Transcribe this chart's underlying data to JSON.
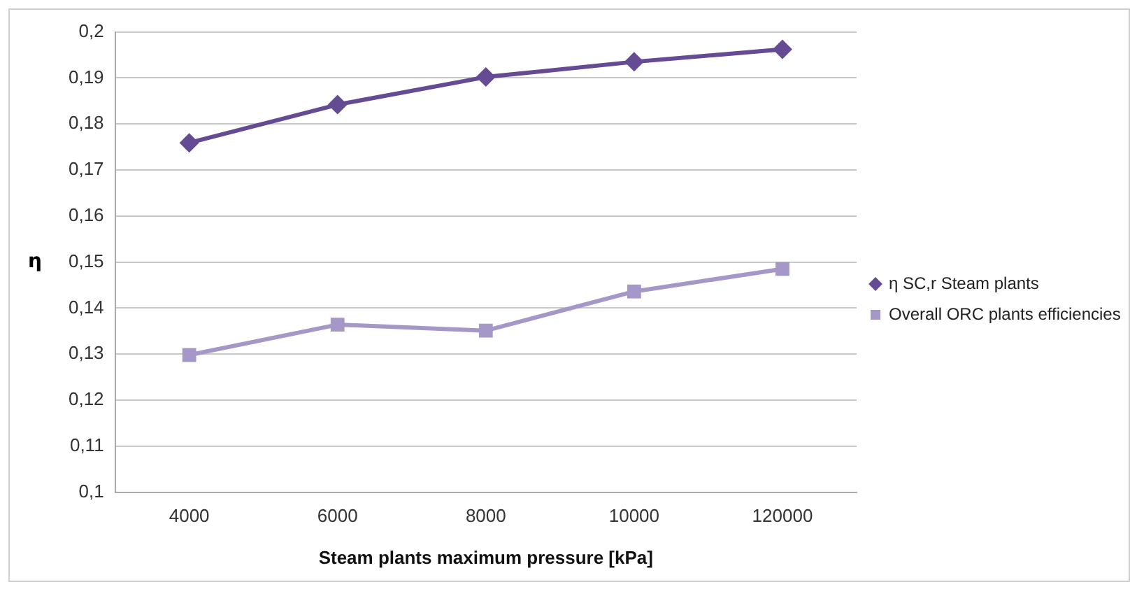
{
  "chart_data": {
    "type": "line",
    "xlabel": "Steam plants maximum pressure [kPa]",
    "ylabel": "η",
    "categories": [
      "4000",
      "6000",
      "8000",
      "10000",
      "120000"
    ],
    "series": [
      {
        "name": "η SC,r Steam plants",
        "color": "#654a94",
        "marker": "diamond",
        "values": [
          0.1759,
          0.1842,
          0.1902,
          0.1935,
          0.1962
        ]
      },
      {
        "name": "Overall ORC plants efficiencies",
        "color": "#a597c8",
        "marker": "square",
        "values": [
          0.1298,
          0.1364,
          0.1351,
          0.1436,
          0.1485
        ]
      }
    ],
    "ylim": [
      0.1,
      0.2
    ],
    "yticks": [
      {
        "value": 0.1,
        "label": "0,1"
      },
      {
        "value": 0.11,
        "label": "0,11"
      },
      {
        "value": 0.12,
        "label": "0,12"
      },
      {
        "value": 0.13,
        "label": "0,13"
      },
      {
        "value": 0.14,
        "label": "0,14"
      },
      {
        "value": 0.15,
        "label": "0,15"
      },
      {
        "value": 0.16,
        "label": "0,16"
      },
      {
        "value": 0.17,
        "label": "0,17"
      },
      {
        "value": 0.18,
        "label": "0,18"
      },
      {
        "value": 0.19,
        "label": "0,19"
      },
      {
        "value": 0.2,
        "label": "0,2"
      }
    ],
    "grid": "y",
    "legend": "right",
    "line_style": "solid"
  }
}
